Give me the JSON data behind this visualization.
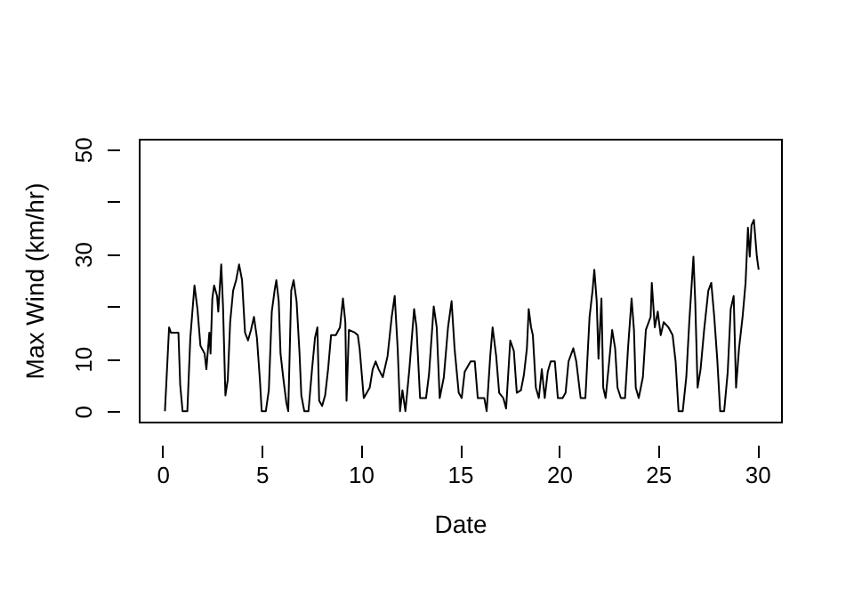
{
  "chart_data": {
    "type": "line",
    "xlabel": "Date",
    "ylabel": "Max Wind (km/hr)",
    "xlim": [
      -1.2,
      31.2
    ],
    "xticks": [
      0,
      5,
      10,
      15,
      20,
      25,
      30
    ],
    "ylim": [
      -2,
      52
    ],
    "yticks": [
      0,
      10,
      {
        "value": 20,
        "label": null
      },
      30,
      {
        "value": 40,
        "label": null
      },
      50
    ],
    "series": [
      {
        "color": "#000000",
        "x": [
          0.12,
          0.33,
          0.42,
          0.8,
          0.89,
          1.01,
          1.25,
          1.4,
          1.61,
          1.76,
          1.91,
          2.12,
          2.21,
          2.36,
          2.42,
          2.51,
          2.6,
          2.75,
          2.81,
          2.96,
          3.05,
          3.17,
          3.29,
          3.41,
          3.56,
          3.71,
          3.86,
          4.01,
          4.16,
          4.31,
          4.46,
          4.61,
          4.76,
          4.91,
          5.0,
          5.21,
          5.36,
          5.51,
          5.65,
          5.74,
          5.86,
          5.95,
          6.1,
          6.25,
          6.34,
          6.49,
          6.61,
          6.76,
          6.91,
          7.0,
          7.15,
          7.36,
          7.54,
          7.69,
          7.81,
          7.9,
          8.05,
          8.2,
          8.35,
          8.5,
          8.74,
          8.95,
          9.1,
          9.22,
          9.28,
          9.4,
          9.7,
          9.85,
          9.94,
          10.15,
          10.45,
          10.6,
          10.75,
          10.9,
          11.11,
          11.35,
          11.56,
          11.71,
          11.86,
          11.98,
          12.1,
          12.25,
          12.45,
          12.69,
          12.81,
          12.99,
          13.29,
          13.44,
          13.68,
          13.83,
          13.98,
          14.19,
          14.4,
          14.58,
          14.73,
          14.94,
          15.09,
          15.24,
          15.54,
          15.75,
          15.9,
          16.23,
          16.35,
          16.53,
          16.65,
          16.83,
          16.98,
          17.19,
          17.33,
          17.54,
          17.72,
          17.87,
          18.08,
          18.23,
          18.38,
          18.47,
          18.59,
          18.68,
          18.83,
          18.98,
          19.13,
          19.28,
          19.43,
          19.58,
          19.79,
          19.94,
          20.18,
          20.33,
          20.48,
          20.72,
          20.87,
          21.09,
          21.33,
          21.54,
          21.69,
          21.78,
          21.9,
          21.99,
          22.14,
          22.23,
          22.35,
          22.53,
          22.68,
          22.83,
          22.95,
          23.12,
          23.33,
          23.48,
          23.66,
          23.78,
          23.87,
          24.02,
          24.23,
          24.38,
          24.62,
          24.68,
          24.83,
          24.98,
          25.13,
          25.28,
          25.52,
          25.73,
          25.88,
          26.03,
          26.24,
          26.42,
          26.57,
          26.78,
          26.87,
          26.99,
          27.14,
          27.32,
          27.53,
          27.68,
          27.83,
          27.98,
          28.13,
          28.33,
          28.51,
          28.66,
          28.81,
          28.93,
          29.08,
          29.26,
          29.41,
          29.53,
          29.62,
          29.71,
          29.83,
          29.98,
          30.07
        ],
        "values": [
          0,
          16,
          15,
          15,
          5,
          0,
          0,
          14,
          24,
          19.5,
          12.5,
          11,
          8,
          15,
          11,
          21.5,
          24,
          22,
          19,
          28,
          20,
          3,
          6,
          17,
          23,
          25,
          28,
          25,
          15,
          13.5,
          15.5,
          18,
          14,
          6,
          0,
          0,
          4,
          19,
          23,
          25,
          21,
          11,
          6,
          1.5,
          0,
          23,
          25,
          21,
          11,
          3,
          0,
          0,
          8,
          14,
          16,
          2,
          1,
          3,
          8,
          14.5,
          14.5,
          16,
          21.5,
          17,
          2,
          15.5,
          15,
          14.5,
          12,
          2.5,
          4.5,
          8,
          9.5,
          8,
          6.5,
          10.5,
          18,
          22,
          12,
          0,
          4,
          0,
          8,
          19.5,
          16,
          2.5,
          2.5,
          7,
          20,
          16,
          2.5,
          6.5,
          16,
          21,
          12,
          3.5,
          2.5,
          7.5,
          9.5,
          9.5,
          2.5,
          2.5,
          0,
          10.5,
          16,
          10.5,
          3.5,
          2.5,
          0.5,
          13.5,
          11.5,
          3.5,
          4,
          7,
          12,
          19.5,
          16,
          14.5,
          4.5,
          2.5,
          8,
          2.5,
          7.5,
          9.5,
          9.5,
          2.5,
          2.5,
          3.5,
          9.5,
          12,
          9.5,
          2.5,
          2.5,
          18,
          23,
          27,
          21,
          10,
          21.5,
          4.5,
          2.5,
          9.5,
          15.5,
          12,
          4.5,
          2.5,
          2.5,
          12,
          21.5,
          15.5,
          4.5,
          2.5,
          6.5,
          15.5,
          18,
          24.5,
          16,
          19,
          14.5,
          17,
          16,
          14.5,
          9.5,
          0,
          0,
          6.5,
          17,
          29.5,
          21,
          4.5,
          8,
          15.5,
          23,
          24.5,
          18,
          10,
          0,
          0,
          7.5,
          19.5,
          22,
          4.5,
          12,
          18,
          24.5,
          35,
          29.5,
          35.5,
          36.5,
          29.5,
          27
        ]
      }
    ]
  }
}
